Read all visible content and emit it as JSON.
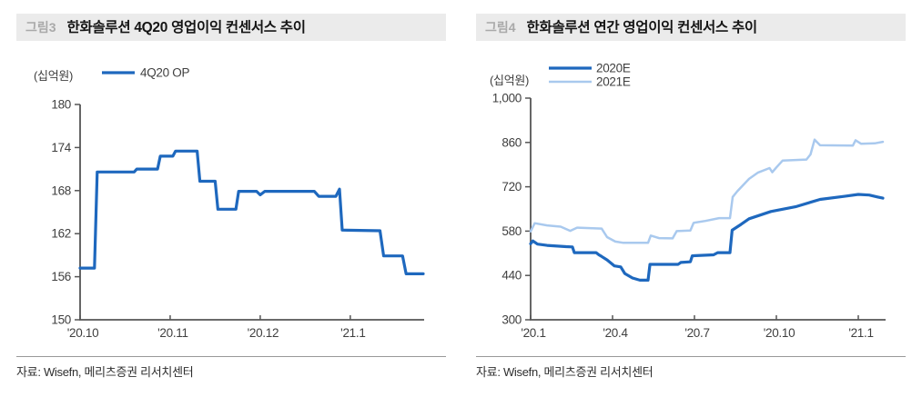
{
  "figures": [
    {
      "tag": "그림3",
      "title": "한화솔루션 4Q20 영업이익 컨센서스 추이",
      "unit_label": "(십억원)",
      "source": "자료: Wisefn, 메리츠증권 리서치센터"
    },
    {
      "tag": "그림4",
      "title": "한화솔루션 연간 영업이익 컨센서스 추이",
      "unit_label": "(십억원)",
      "source": "자료: Wisefn, 메리츠증권 리서치센터"
    }
  ],
  "colors": {
    "dark_blue": "#1E68BE",
    "light_blue": "#A9C9EE",
    "axis": "#555555",
    "tick_text": "#3f3f3f",
    "header_bg": "#ebebeb",
    "tag_gray": "#a9a9a9"
  },
  "chart_data": [
    {
      "type": "line",
      "title": "한화솔루션 4Q20 영업이익 컨센서스 추이",
      "unit_label": "(십억원)",
      "x_unit": "months since '20.10",
      "xlim": [
        0,
        3.82
      ],
      "ylim": [
        150,
        180
      ],
      "grid": false,
      "legend_position": "top-left",
      "y_ticks": [
        {
          "v": 150,
          "label": "150"
        },
        {
          "v": 156,
          "label": "156"
        },
        {
          "v": 162,
          "label": "162"
        },
        {
          "v": 168,
          "label": "168"
        },
        {
          "v": 174,
          "label": "174"
        },
        {
          "v": 180,
          "label": "180"
        }
      ],
      "x_ticks": [
        {
          "v": 0,
          "label": "'20.10"
        },
        {
          "v": 1,
          "label": "'20.11"
        },
        {
          "v": 2,
          "label": "'20.12"
        },
        {
          "v": 3,
          "label": "'21.1"
        }
      ],
      "series": [
        {
          "name": "4Q20 OP",
          "color": "#1E68BE",
          "width": 3.2,
          "points": [
            [
              0,
              157.2
            ],
            [
              0.16,
              157.2
            ],
            [
              0.19,
              170.6
            ],
            [
              0.6,
              170.6
            ],
            [
              0.63,
              171.0
            ],
            [
              0.86,
              171.0
            ],
            [
              0.89,
              172.8
            ],
            [
              1.03,
              172.8
            ],
            [
              1.06,
              173.5
            ],
            [
              1.3,
              173.5
            ],
            [
              1.33,
              169.3
            ],
            [
              1.5,
              169.3
            ],
            [
              1.53,
              165.4
            ],
            [
              1.73,
              165.4
            ],
            [
              1.76,
              167.9
            ],
            [
              1.96,
              167.9
            ],
            [
              2.0,
              167.4
            ],
            [
              2.05,
              167.9
            ],
            [
              2.6,
              167.9
            ],
            [
              2.65,
              167.2
            ],
            [
              2.84,
              167.2
            ],
            [
              2.88,
              168.2
            ],
            [
              2.91,
              162.5
            ],
            [
              3.33,
              162.4
            ],
            [
              3.37,
              158.9
            ],
            [
              3.58,
              158.9
            ],
            [
              3.62,
              156.4
            ],
            [
              3.81,
              156.4
            ]
          ]
        }
      ]
    },
    {
      "type": "line",
      "title": "한화솔루션 연간 영업이익 컨센서스 추이",
      "unit_label": "(십억원)",
      "x_unit": "months since '20.1",
      "xlim": [
        0,
        13
      ],
      "ylim": [
        300,
        1000
      ],
      "grid": false,
      "legend_position": "top-left",
      "y_ticks": [
        {
          "v": 300,
          "label": "300"
        },
        {
          "v": 440,
          "label": "440"
        },
        {
          "v": 580,
          "label": "580"
        },
        {
          "v": 720,
          "label": "720"
        },
        {
          "v": 860,
          "label": "860"
        },
        {
          "v": 1000,
          "label": "1,000"
        }
      ],
      "x_ticks": [
        {
          "v": 0,
          "label": "'20.1"
        },
        {
          "v": 3,
          "label": "'20.4"
        },
        {
          "v": 6,
          "label": "'20.7"
        },
        {
          "v": 9,
          "label": "'20.10"
        },
        {
          "v": 12,
          "label": "'21.1"
        }
      ],
      "series": [
        {
          "name": "2020E",
          "color": "#1E68BE",
          "width": 3.2,
          "points": [
            [
              0,
              540
            ],
            [
              0.08,
              549
            ],
            [
              0.25,
              539
            ],
            [
              0.6,
              535
            ],
            [
              1.3,
              531
            ],
            [
              1.53,
              530
            ],
            [
              1.6,
              512
            ],
            [
              2.4,
              512
            ],
            [
              2.5,
              505
            ],
            [
              2.6,
              500
            ],
            [
              2.8,
              489
            ],
            [
              3.07,
              470
            ],
            [
              3.3,
              467
            ],
            [
              3.45,
              446
            ],
            [
              3.73,
              432
            ],
            [
              4.0,
              425
            ],
            [
              4.3,
              425
            ],
            [
              4.37,
              475
            ],
            [
              5.4,
              475
            ],
            [
              5.5,
              481
            ],
            [
              5.85,
              483
            ],
            [
              5.92,
              502
            ],
            [
              6.7,
              505
            ],
            [
              6.85,
              512
            ],
            [
              7.3,
              512
            ],
            [
              7.38,
              583
            ],
            [
              7.7,
              601
            ],
            [
              8.0,
              619
            ],
            [
              8.8,
              642
            ],
            [
              9.7,
              657
            ],
            [
              10.6,
              680
            ],
            [
              11.5,
              690
            ],
            [
              12.0,
              696
            ],
            [
              12.4,
              694
            ],
            [
              12.7,
              688
            ],
            [
              12.9,
              684
            ]
          ]
        },
        {
          "name": "2021E",
          "color": "#A9C9EE",
          "width": 2.5,
          "points": [
            [
              0,
              579
            ],
            [
              0.15,
              605
            ],
            [
              0.6,
              598
            ],
            [
              1.1,
              594
            ],
            [
              1.45,
              581
            ],
            [
              1.7,
              591
            ],
            [
              2.6,
              588
            ],
            [
              2.8,
              561
            ],
            [
              3.1,
              547
            ],
            [
              3.4,
              543
            ],
            [
              4.3,
              543
            ],
            [
              4.4,
              566
            ],
            [
              4.7,
              558
            ],
            [
              5.2,
              557
            ],
            [
              5.35,
              580
            ],
            [
              5.85,
              582
            ],
            [
              5.97,
              606
            ],
            [
              6.4,
              612
            ],
            [
              6.9,
              621
            ],
            [
              7.3,
              621
            ],
            [
              7.4,
              688
            ],
            [
              7.57,
              706
            ],
            [
              8.0,
              745
            ],
            [
              8.33,
              765
            ],
            [
              8.75,
              779
            ],
            [
              8.85,
              766
            ],
            [
              9.0,
              781
            ],
            [
              9.23,
              803
            ],
            [
              10.1,
              806
            ],
            [
              10.25,
              822
            ],
            [
              10.4,
              869
            ],
            [
              10.6,
              851
            ],
            [
              11.8,
              850
            ],
            [
              11.9,
              867
            ],
            [
              12.1,
              856
            ],
            [
              12.6,
              857
            ],
            [
              12.9,
              862
            ]
          ]
        }
      ]
    }
  ]
}
